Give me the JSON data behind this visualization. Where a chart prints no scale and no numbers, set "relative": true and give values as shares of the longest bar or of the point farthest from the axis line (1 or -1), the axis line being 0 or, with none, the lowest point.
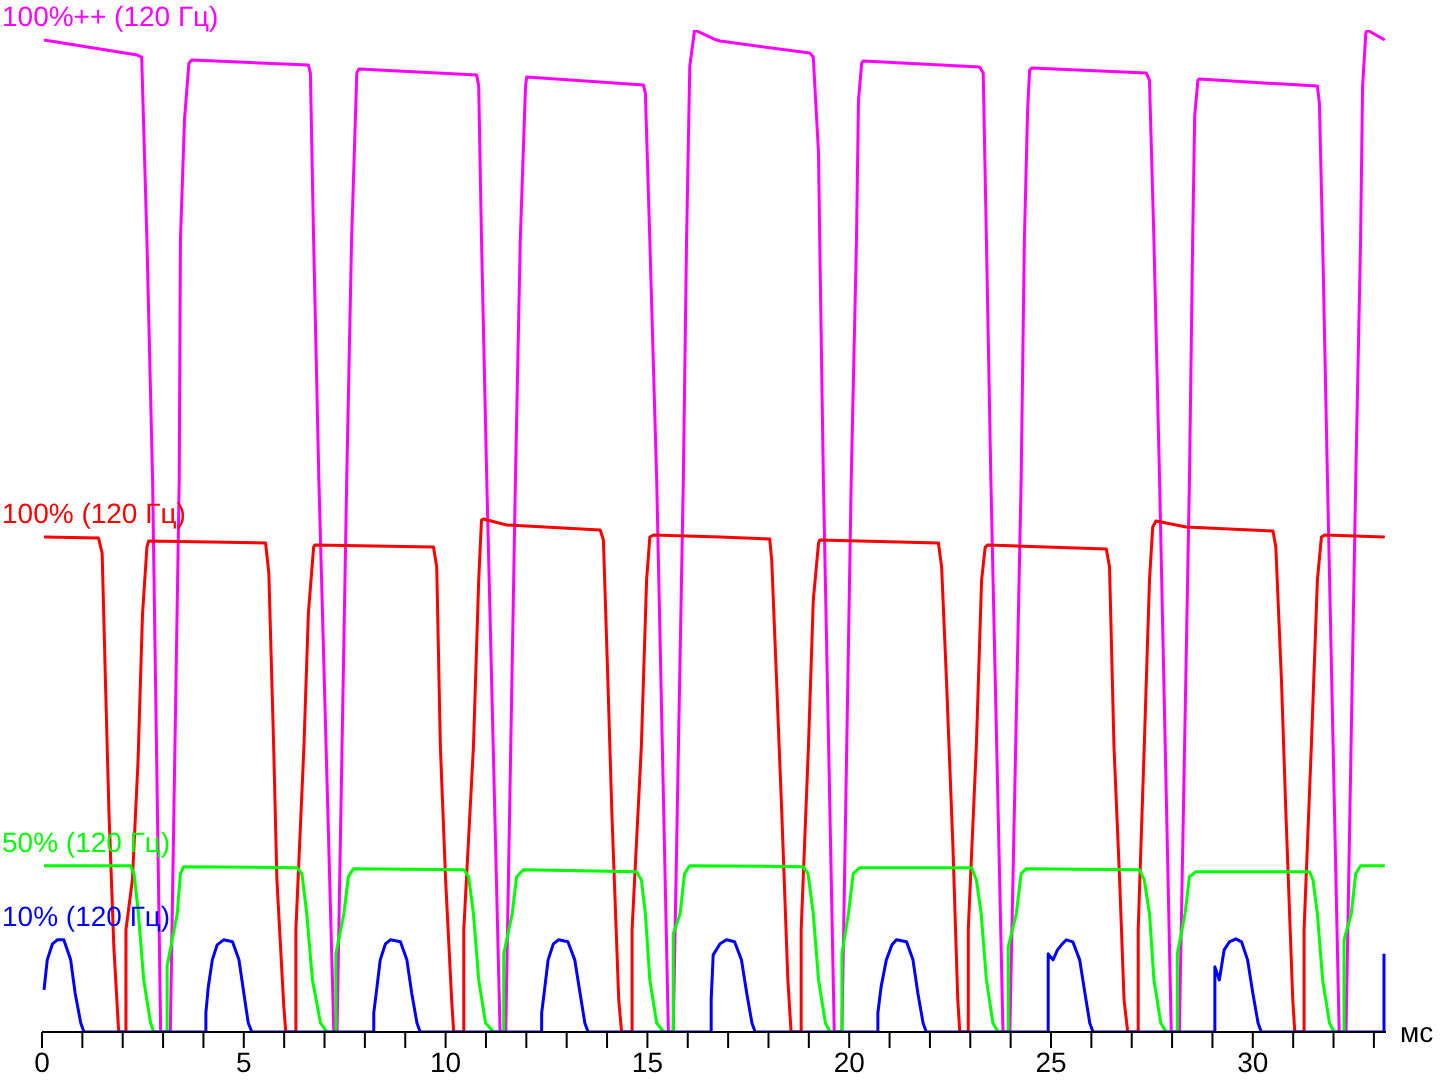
{
  "chart_data": {
    "type": "line",
    "relative": true,
    "xlabel": "мс",
    "xlim": [
      0,
      33.3
    ],
    "xticks": [
      0,
      {
        "value": 1,
        "label": null
      },
      {
        "value": 2,
        "label": null
      },
      {
        "value": 3,
        "label": null
      },
      {
        "value": 4,
        "label": null
      },
      5,
      {
        "value": 6,
        "label": null
      },
      {
        "value": 7,
        "label": null
      },
      {
        "value": 8,
        "label": null
      },
      {
        "value": 9,
        "label": null
      },
      10,
      {
        "value": 11,
        "label": null
      },
      {
        "value": 12,
        "label": null
      },
      {
        "value": 13,
        "label": null
      },
      {
        "value": 14,
        "label": null
      },
      15,
      {
        "value": 16,
        "label": null
      },
      {
        "value": 17,
        "label": null
      },
      {
        "value": 18,
        "label": null
      },
      {
        "value": 19,
        "label": null
      },
      20,
      {
        "value": 21,
        "label": null
      },
      {
        "value": 22,
        "label": null
      },
      {
        "value": 23,
        "label": null
      },
      {
        "value": 24,
        "label": null
      },
      25,
      {
        "value": 26,
        "label": null
      },
      {
        "value": 27,
        "label": null
      },
      {
        "value": 28,
        "label": null
      },
      {
        "value": 29,
        "label": null
      },
      30,
      {
        "value": 31,
        "label": null
      },
      {
        "value": 32,
        "label": null
      },
      {
        "value": 33,
        "label": null
      }
    ],
    "series": [
      {
        "name": "100%++ (120 Гц)",
        "color": "#ff00ff",
        "x": [
          0.05,
          2.36,
          2.47,
          2.6,
          2.74,
          2.94,
          3.18,
          3.4,
          3.43,
          3.53,
          3.64,
          3.71,
          6.6,
          6.65,
          6.73,
          6.86,
          7.23,
          7.31,
          7.55,
          7.67,
          7.8,
          7.85,
          10.77,
          10.82,
          10.89,
          11.02,
          11.35,
          11.49,
          11.73,
          11.85,
          11.98,
          12.01,
          14.9,
          14.95,
          15.06,
          15.23,
          15.52,
          15.64,
          15.89,
          15.97,
          16.05,
          16.17,
          16.71,
          16.8,
          19.02,
          19.11,
          19.24,
          19.27,
          19.36,
          19.63,
          19.82,
          20.05,
          20.18,
          20.23,
          20.31,
          20.35,
          23.23,
          23.32,
          23.4,
          23.51,
          23.81,
          23.98,
          24.26,
          24.34,
          24.42,
          24.47,
          24.52,
          27.36,
          27.44,
          27.55,
          27.69,
          27.98,
          28.18,
          28.43,
          28.51,
          28.56,
          28.64,
          28.68,
          31.6,
          31.65,
          31.73,
          31.85,
          32.14,
          32.31,
          32.55,
          32.67,
          32.72,
          32.8,
          32.84,
          33.05,
          33.27
        ],
        "values": [
          0.99,
          0.975,
          0.973,
          0.79,
          0.551,
          0,
          0,
          0.551,
          0.79,
          0.91,
          0.967,
          0.97,
          0.965,
          0.957,
          0.79,
          0.551,
          0,
          0,
          0.551,
          0.79,
          0.957,
          0.961,
          0.955,
          0.944,
          0.79,
          0.551,
          0,
          0,
          0.551,
          0.79,
          0.944,
          0.953,
          0.945,
          0.937,
          0.79,
          0.551,
          0,
          0,
          0.551,
          0.79,
          0.964,
          1,
          0.99,
          0.989,
          0.977,
          0.973,
          0.877,
          0.79,
          0.551,
          0,
          0,
          0.551,
          0.79,
          0.93,
          0.967,
          0.969,
          0.963,
          0.957,
          0.79,
          0.551,
          0,
          0,
          0.551,
          0.79,
          0.92,
          0.96,
          0.962,
          0.957,
          0.95,
          0.79,
          0.551,
          0,
          0,
          0.551,
          0.79,
          0.914,
          0.95,
          0.951,
          0.944,
          0.927,
          0.79,
          0.551,
          0,
          0,
          0.551,
          0.79,
          0.944,
          0.997,
          1,
          0.995,
          0.99
        ]
      },
      {
        "name": "100% (120 Гц)",
        "color": "#ff0000",
        "x": [
          0.05,
          1.4,
          1.49,
          1.58,
          1.66,
          1.78,
          1.9,
          2.08,
          2.08,
          2.24,
          2.38,
          2.49,
          2.6,
          2.64,
          5.54,
          5.62,
          5.74,
          5.82,
          5.99,
          6.04,
          6.29,
          6.29,
          6.49,
          6.6,
          6.73,
          6.76,
          9.7,
          9.78,
          9.87,
          10.0,
          10.15,
          10.2,
          10.45,
          10.45,
          10.69,
          10.82,
          10.89,
          10.94,
          11.51,
          13.83,
          13.91,
          14.02,
          14.12,
          14.29,
          14.36,
          14.62,
          14.62,
          14.85,
          14.98,
          15.06,
          15.15,
          16.8,
          18.03,
          18.08,
          18.2,
          18.33,
          18.48,
          18.56,
          18.81,
          18.81,
          18.99,
          19.11,
          19.24,
          19.27,
          22.21,
          22.29,
          22.41,
          22.57,
          22.69,
          22.74,
          22.95,
          22.95,
          23.15,
          23.28,
          23.37,
          23.43,
          26.37,
          26.45,
          26.56,
          26.7,
          26.81,
          26.9,
          27.16,
          27.16,
          27.31,
          27.44,
          27.52,
          27.6,
          28.35,
          30.5,
          30.57,
          30.71,
          30.82,
          30.99,
          31.04,
          31.27,
          31.27,
          31.45,
          31.6,
          31.7,
          31.78,
          33.27
        ],
        "values": [
          0.494,
          0.493,
          0.478,
          0.338,
          0.218,
          0.085,
          0,
          0,
          0.102,
          0.152,
          0.271,
          0.417,
          0.484,
          0.49,
          0.488,
          0.458,
          0.285,
          0.152,
          0.026,
          0,
          0,
          0.102,
          0.285,
          0.418,
          0.484,
          0.486,
          0.484,
          0.464,
          0.285,
          0.152,
          0.032,
          0,
          0,
          0.102,
          0.285,
          0.451,
          0.511,
          0.512,
          0.506,
          0.501,
          0.491,
          0.351,
          0.218,
          0.032,
          0,
          0,
          0.102,
          0.285,
          0.451,
          0.494,
          0.496,
          0.494,
          0.492,
          0.471,
          0.351,
          0.218,
          0.052,
          0,
          0,
          0.102,
          0.285,
          0.431,
          0.488,
          0.491,
          0.488,
          0.464,
          0.351,
          0.185,
          0.032,
          0,
          0,
          0.102,
          0.285,
          0.451,
          0.484,
          0.486,
          0.482,
          0.464,
          0.285,
          0.152,
          0.032,
          0,
          0,
          0.102,
          0.285,
          0.451,
          0.504,
          0.51,
          0.504,
          0.5,
          0.484,
          0.351,
          0.218,
          0.032,
          0,
          0,
          0.102,
          0.285,
          0.451,
          0.494,
          0.496,
          0.494
        ]
      },
      {
        "name": "50% (120 Гц)",
        "color": "#00ff00",
        "x": [
          0.05,
          2.19,
          2.28,
          2.39,
          2.52,
          2.69,
          2.77,
          3.1,
          3.1,
          3.35,
          3.43,
          3.51,
          6.32,
          6.44,
          6.56,
          6.7,
          6.9,
          7.06,
          7.28,
          7.28,
          7.48,
          7.59,
          7.72,
          10.45,
          10.57,
          10.69,
          10.82,
          10.99,
          11.19,
          11.44,
          11.44,
          11.65,
          11.76,
          11.93,
          14.73,
          14.85,
          14.95,
          15.06,
          15.23,
          15.4,
          15.64,
          15.64,
          15.81,
          15.92,
          16.05,
          18.86,
          18.98,
          19.11,
          19.24,
          19.41,
          19.52,
          19.82,
          19.82,
          19.98,
          20.1,
          20.26,
          23.03,
          23.15,
          23.27,
          23.4,
          23.56,
          23.69,
          23.94,
          23.94,
          24.14,
          24.26,
          24.39,
          27.19,
          27.31,
          27.44,
          27.55,
          27.72,
          27.85,
          28.13,
          28.13,
          28.32,
          28.43,
          28.59,
          31.4,
          31.49,
          31.6,
          31.73,
          31.9,
          32.01,
          32.26,
          32.26,
          32.44,
          32.55,
          32.67,
          33.27
        ],
        "values": [
          0.166,
          0.166,
          0.158,
          0.118,
          0.052,
          0.009,
          0,
          0,
          0.066,
          0.118,
          0.158,
          0.165,
          0.164,
          0.158,
          0.118,
          0.052,
          0.009,
          0,
          0,
          0.078,
          0.118,
          0.155,
          0.163,
          0.162,
          0.155,
          0.118,
          0.052,
          0.009,
          0,
          0,
          0.078,
          0.118,
          0.155,
          0.162,
          0.16,
          0.152,
          0.118,
          0.052,
          0.009,
          0,
          0,
          0.098,
          0.118,
          0.158,
          0.166,
          0.165,
          0.158,
          0.118,
          0.052,
          0.009,
          0,
          0,
          0.078,
          0.118,
          0.158,
          0.164,
          0.164,
          0.152,
          0.118,
          0.052,
          0.009,
          0,
          0,
          0.085,
          0.118,
          0.158,
          0.163,
          0.162,
          0.152,
          0.118,
          0.052,
          0.009,
          0,
          0,
          0.078,
          0.118,
          0.155,
          0.16,
          0.16,
          0.152,
          0.118,
          0.052,
          0.009,
          0,
          0,
          0.092,
          0.118,
          0.158,
          0.166,
          0.166
        ]
      },
      {
        "name": "10% (120 Гц)",
        "color": "#0000ff",
        "x": [
          0.05,
          0.13,
          0.26,
          0.38,
          0.54,
          0.71,
          0.82,
          0.96,
          1.04,
          4.06,
          4.06,
          4.12,
          4.22,
          4.34,
          4.5,
          4.72,
          4.88,
          5.0,
          5.11,
          5.2,
          8.22,
          8.22,
          8.3,
          8.38,
          8.51,
          8.63,
          8.88,
          9.04,
          9.16,
          9.29,
          9.37,
          12.38,
          12.38,
          12.46,
          12.54,
          12.67,
          12.8,
          13.03,
          13.2,
          13.33,
          13.45,
          13.53,
          16.58,
          16.58,
          16.63,
          16.8,
          16.96,
          17.16,
          17.33,
          17.46,
          17.59,
          17.67,
          20.71,
          20.71,
          20.79,
          20.92,
          21.06,
          21.17,
          21.42,
          21.58,
          21.7,
          21.83,
          21.91,
          24.93,
          24.93,
          25.05,
          25.16,
          25.26,
          25.38,
          25.54,
          25.71,
          25.84,
          25.96,
          26.04,
          29.06,
          29.06,
          29.17,
          29.29,
          29.42,
          29.58,
          29.72,
          29.87,
          30.0,
          30.13,
          30.21,
          33.25,
          33.25
        ],
        "values": [
          0.042,
          0.072,
          0.088,
          0.092,
          0.092,
          0.072,
          0.039,
          0.009,
          0,
          0,
          0.019,
          0.045,
          0.072,
          0.087,
          0.092,
          0.09,
          0.072,
          0.039,
          0.009,
          0,
          0,
          0.019,
          0.045,
          0.072,
          0.088,
          0.092,
          0.09,
          0.072,
          0.039,
          0.009,
          0,
          0,
          0.019,
          0.045,
          0.072,
          0.088,
          0.092,
          0.09,
          0.072,
          0.039,
          0.009,
          0,
          0,
          0.032,
          0.077,
          0.088,
          0.092,
          0.09,
          0.072,
          0.039,
          0.009,
          0,
          0,
          0.019,
          0.045,
          0.072,
          0.087,
          0.092,
          0.09,
          0.072,
          0.039,
          0.009,
          0,
          0,
          0.078,
          0.072,
          0.082,
          0.087,
          0.092,
          0.09,
          0.072,
          0.039,
          0.009,
          0,
          0,
          0.065,
          0.052,
          0.082,
          0.09,
          0.093,
          0.09,
          0.072,
          0.039,
          0.009,
          0,
          0,
          0.078
        ]
      }
    ]
  }
}
